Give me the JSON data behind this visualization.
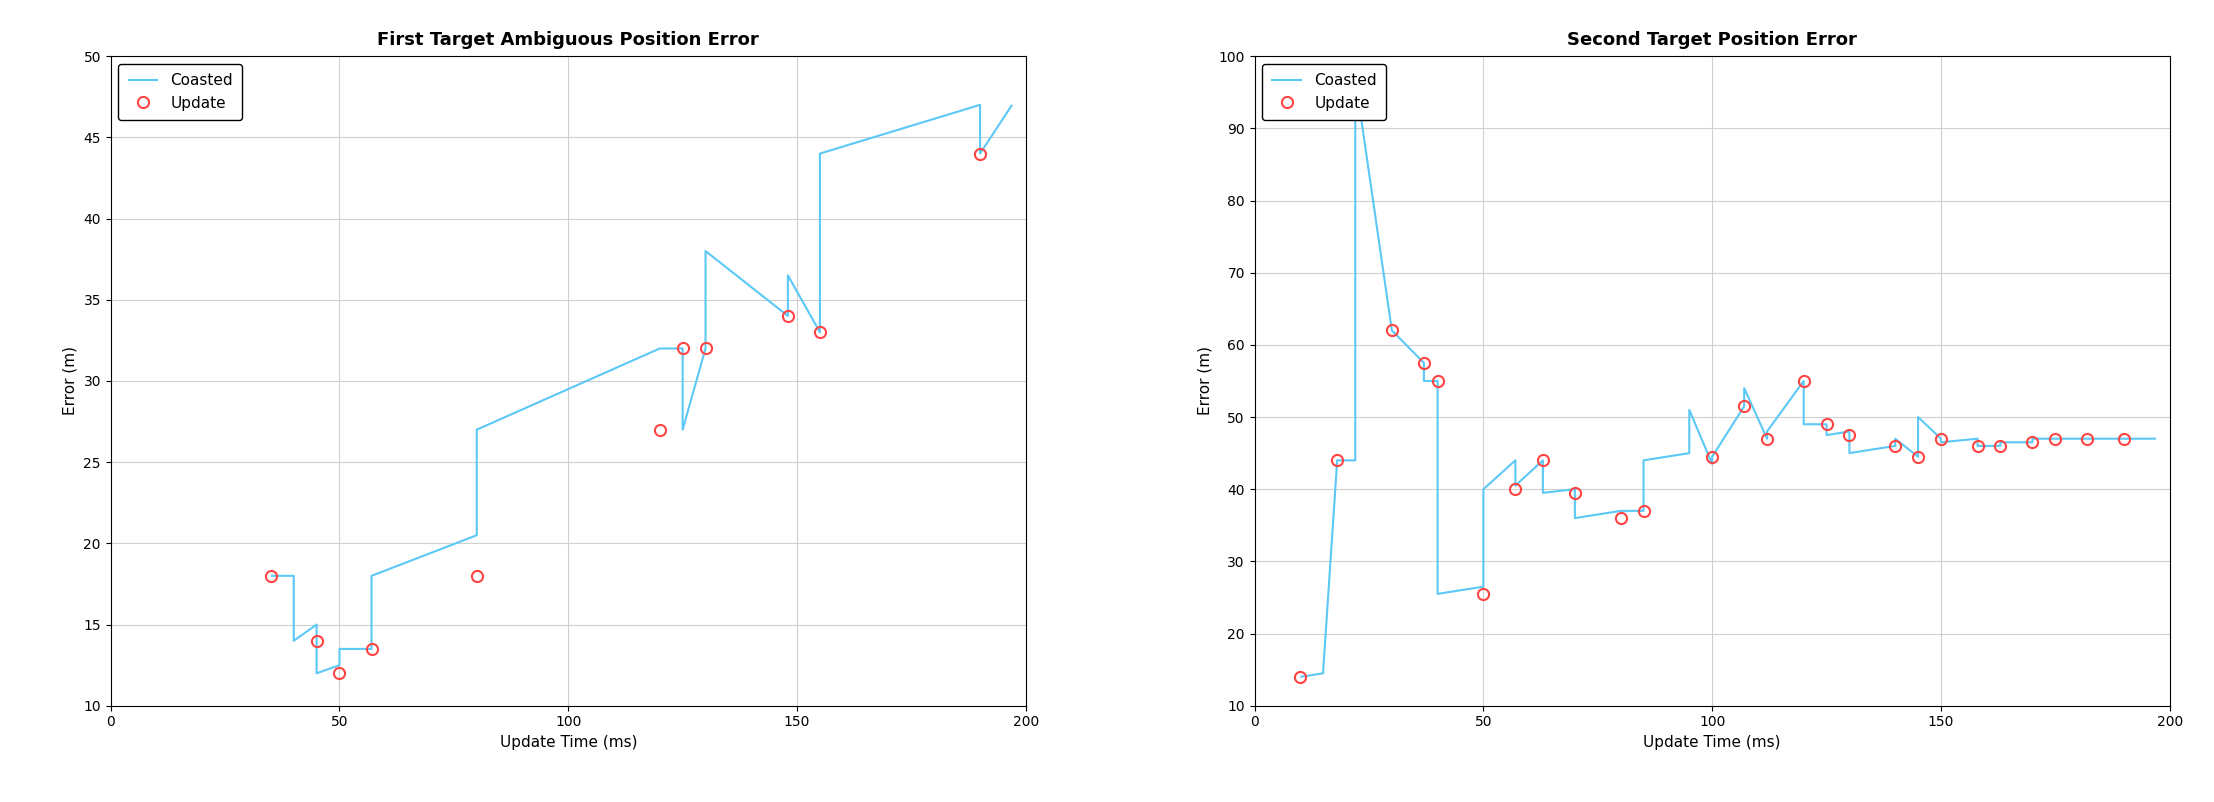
{
  "plot1": {
    "title": "First Target Ambiguous Position Error",
    "xlabel": "Update Time (ms)",
    "ylabel": "Error (m)",
    "xlim": [
      0,
      200
    ],
    "ylim": [
      10,
      50
    ],
    "yticks": [
      10,
      15,
      20,
      25,
      30,
      35,
      40,
      45,
      50
    ],
    "xticks": [
      0,
      50,
      100,
      150,
      200
    ],
    "coasted_x": [
      35,
      40,
      40,
      45,
      45,
      50,
      50,
      57,
      57,
      80,
      80,
      120,
      120,
      125,
      125,
      130,
      130,
      148,
      148,
      155,
      155,
      190,
      190,
      197
    ],
    "coasted_y": [
      18,
      18,
      14,
      15,
      12,
      12.5,
      13.5,
      13.5,
      18,
      20.5,
      27,
      32,
      32,
      32,
      27,
      32,
      38,
      34,
      36.5,
      33,
      44,
      47,
      44,
      47
    ],
    "update_x": [
      35,
      45,
      50,
      57,
      80,
      120,
      125,
      130,
      148,
      155,
      190
    ],
    "update_y": [
      18,
      14,
      12,
      13.5,
      18,
      27,
      32,
      32,
      34,
      33,
      44
    ]
  },
  "plot2": {
    "title": "Second Target Position Error",
    "xlabel": "Update Time (ms)",
    "ylabel": "Error (m)",
    "xlim": [
      0,
      200
    ],
    "ylim": [
      10,
      100
    ],
    "yticks": [
      10,
      20,
      30,
      40,
      50,
      60,
      70,
      80,
      90,
      100
    ],
    "xticks": [
      0,
      50,
      100,
      150,
      200
    ],
    "coasted_x": [
      10,
      15,
      15,
      18,
      18,
      22,
      22,
      30,
      30,
      37,
      37,
      40,
      40,
      50,
      50,
      57,
      57,
      63,
      63,
      70,
      70,
      80,
      80,
      85,
      85,
      95,
      95,
      100,
      100,
      107,
      107,
      112,
      112,
      120,
      120,
      125,
      125,
      130,
      130,
      140,
      140,
      145,
      145,
      150,
      150,
      158,
      158,
      163,
      163,
      170,
      170,
      175,
      175,
      182,
      182,
      190,
      190,
      197
    ],
    "coasted_y": [
      14,
      14.5,
      15,
      43.5,
      44,
      44,
      97,
      62,
      62,
      57.5,
      55,
      55,
      25.5,
      26.5,
      40,
      44,
      40.5,
      44,
      39.5,
      40,
      36,
      37,
      37,
      37,
      44,
      45,
      51,
      43.5,
      44.5,
      51.5,
      54,
      47,
      48,
      55,
      49,
      49,
      47.5,
      48,
      45,
      46,
      47,
      44.5,
      50,
      47,
      46.5,
      47,
      46,
      46,
      46.5,
      46.5,
      47,
      47,
      47,
      47,
      47,
      47,
      47,
      47
    ],
    "update_x": [
      10,
      18,
      30,
      37,
      40,
      50,
      57,
      63,
      70,
      80,
      85,
      100,
      107,
      112,
      120,
      125,
      130,
      140,
      145,
      150,
      158,
      163,
      170,
      175,
      182,
      190
    ],
    "update_y": [
      14,
      44,
      62,
      57.5,
      55,
      25.5,
      40,
      44,
      39.5,
      36,
      37,
      44.5,
      51.5,
      47,
      55,
      49,
      47.5,
      46,
      44.5,
      47,
      46,
      46,
      46.5,
      47,
      47,
      47
    ]
  },
  "line_color": "#5BC8F5",
  "circle_color": "#FF4444",
  "circle_face": "none",
  "background_color": "#FFFFFF",
  "grid_color": "#D0D0D0",
  "legend_entries": [
    "Coasted",
    "Update"
  ],
  "title_fontsize": 13,
  "label_fontsize": 11,
  "tick_fontsize": 10,
  "line_width": 1.5,
  "circle_size": 8,
  "circle_edge_width": 1.5
}
